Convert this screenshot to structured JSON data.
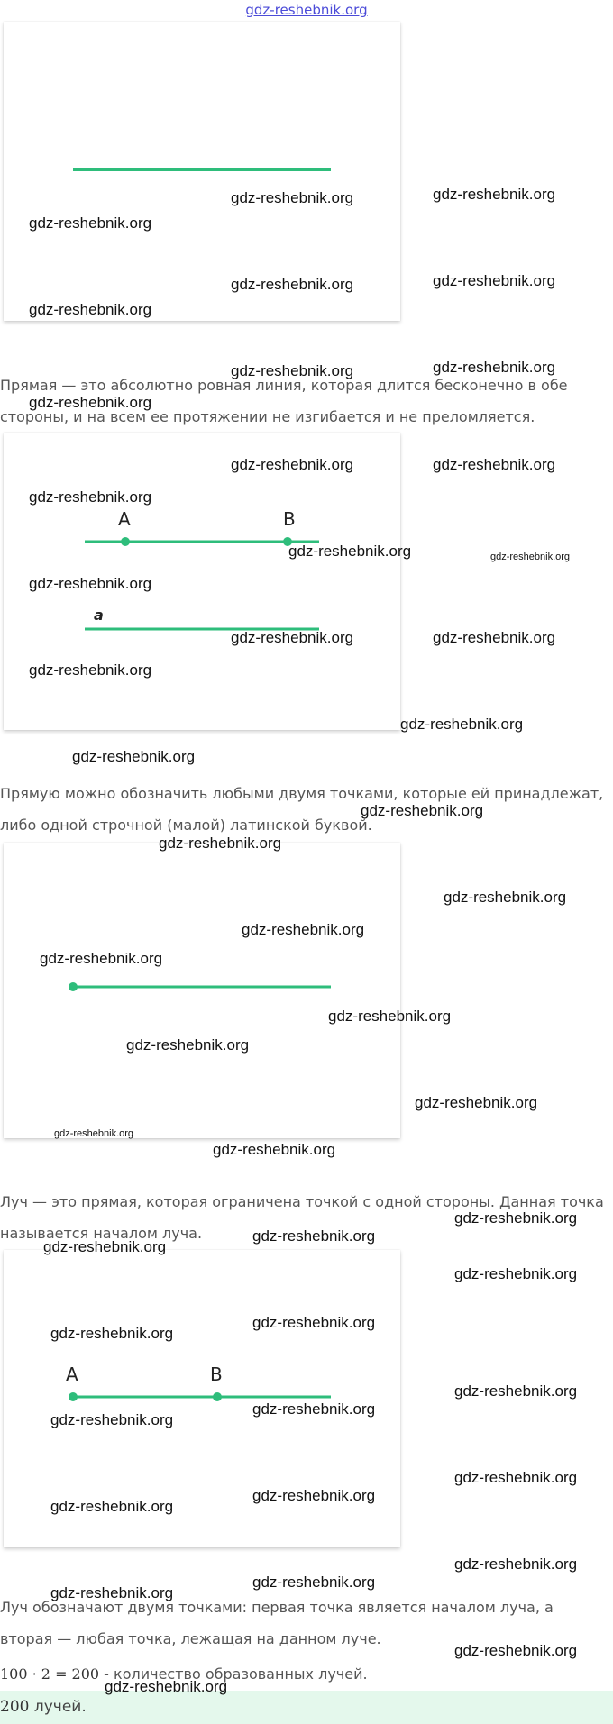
{
  "site_header": "gdz-reshebnik.org",
  "paragraphs": {
    "line_def": "Прямая — это абсолютно ровная линия, которая длится бесконечно в обе стороны, и на всем ее протяжении не изгибается и не преломляется.",
    "line_notation": "Прямую можно обозначить любыми двумя точками, которые ей принадлежат, либо одной строчной (малой) латинской буквой.",
    "ray_def": "Луч — это прямая, которая ограничена точкой с одной стороны. Данная точка называется началом луча.",
    "ray_notation": "Луч обозначают двумя точками: первая точка является началом луча, а вторая — любая точка, лежащая на данном луче."
  },
  "figures": {
    "line_points": {
      "point_a": "A",
      "point_b": "B",
      "line_letter": "a"
    },
    "ray_points": {
      "point_a": "A",
      "point_b": "B"
    }
  },
  "calculation": {
    "expression": "100 · 2 = 200",
    "text": " - количество образованных лучей."
  },
  "answer": {
    "value": "200",
    "text": " лучей."
  },
  "watermark": "gdz-reshebnik.org",
  "colors": {
    "line": "#2ebd7b",
    "answer_bg": "#e4f8ec",
    "header_link": "#4b4bd8"
  }
}
